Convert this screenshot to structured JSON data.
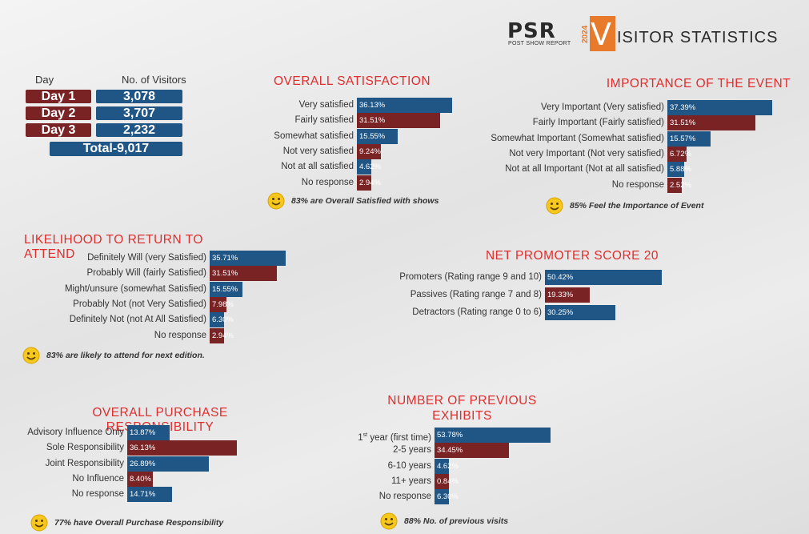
{
  "header": {
    "logo_letters": "PSR",
    "logo_sub": "POST SHOW REPORT",
    "logo_year": "2024",
    "title_initial": "V",
    "title_rest": "ISITOR STATISTICS"
  },
  "visitors": {
    "col_day": "Day",
    "col_visitors": "No. of Visitors",
    "rows": [
      {
        "day": "Day 1",
        "count": "3,078"
      },
      {
        "day": "Day 2",
        "count": "3,707"
      },
      {
        "day": "Day 3",
        "count": "2,232"
      }
    ],
    "total": "Total-9,017"
  },
  "colors": {
    "blue": "#1f5686",
    "red": "#7a2325",
    "title": "#e02d2d"
  },
  "chart_data": [
    {
      "id": "overall-satisfaction",
      "type": "bar",
      "orientation": "horizontal",
      "title": "OVERALL SATISFACTION",
      "categories": [
        "Very satisfied",
        "Fairly satisfied",
        "Somewhat satisfied",
        "Not very satisfied",
        "Not at all satisfied",
        "No response"
      ],
      "values": [
        36.13,
        31.51,
        15.55,
        9.24,
        4.62,
        2.94
      ],
      "labels": [
        "36.13%",
        "31.51%",
        "15.55%",
        "9.24%",
        "4.62%",
        "2.94%"
      ],
      "note": "83% are Overall Satisfied with shows"
    },
    {
      "id": "importance-of-event",
      "type": "bar",
      "orientation": "horizontal",
      "title": "IMPORTANCE OF THE EVENT",
      "categories": [
        "Very Important (Very satisfied)",
        "Fairly Important (Fairly satisfied)",
        "Somewhat Important (Somewhat satisfied)",
        "Not very Important (Not very satisfied)",
        "Not at all Important (Not at all satisfied)",
        "No response"
      ],
      "values": [
        37.39,
        31.51,
        15.57,
        6.72,
        5.88,
        2.52
      ],
      "labels": [
        "37.39%",
        "31.51%",
        "15.57%",
        "6.72%",
        "5.88%",
        "2.52%"
      ],
      "note": "85% Feel the Importance of Event"
    },
    {
      "id": "likelihood-to-return",
      "type": "bar",
      "orientation": "horizontal",
      "title": "LIKELIHOOD TO RETURN TO ATTEND",
      "categories": [
        "Definitely Will (very Satisfied)",
        "Probably Will (fairly Satisfied)",
        "Might/unsure (somewhat Satisfied)",
        "Probably Not (not Very Satisfied)",
        "Definitely Not (not At All Satisfied)",
        "No response"
      ],
      "values": [
        35.71,
        31.51,
        15.55,
        7.98,
        6.3,
        2.94
      ],
      "labels": [
        "35.71%",
        "31.51%",
        "15.55%",
        "7.98%",
        "6.30%",
        "2.94%"
      ],
      "note": "83% are likely to attend for  next edition."
    },
    {
      "id": "net-promoter-score",
      "type": "bar",
      "orientation": "horizontal",
      "title": "NET PROMOTER SCORE 20",
      "categories": [
        "Promoters (Rating range 9 and 10)",
        "Passives (Rating range 7 and 8)",
        "Detractors (Rating range 0 to 6)"
      ],
      "values": [
        50.42,
        19.33,
        30.25
      ],
      "labels": [
        "50.42%",
        "19.33%",
        "30.25%"
      ],
      "note": ""
    },
    {
      "id": "purchase-responsibility",
      "type": "bar",
      "orientation": "horizontal",
      "title": "OVERALL PURCHASE RESPONSIBILITY",
      "categories": [
        "Advisory Influence Only",
        "Sole Responsibility",
        "Joint Responsibility",
        "No Influence",
        "No response"
      ],
      "values": [
        13.87,
        36.13,
        26.89,
        8.4,
        14.71
      ],
      "labels": [
        "13.87%",
        "36.13%",
        "26.89%",
        "8.40%",
        "14.71%"
      ],
      "note": "77% have Overall Purchase Responsibility"
    },
    {
      "id": "previous-exhibits",
      "type": "bar",
      "orientation": "horizontal",
      "title": "NUMBER OF PREVIOUS EXHIBITS",
      "categories": [
        "1st year (first time)",
        "2-5 years",
        "6-10 years",
        "11+ years",
        "No response"
      ],
      "values": [
        53.78,
        34.45,
        4.62,
        0.84,
        6.3
      ],
      "labels": [
        "53.78%",
        "34.45%",
        "4.62%",
        "0.84%",
        "6.30%"
      ],
      "note": "88% No. of previous visits"
    }
  ]
}
